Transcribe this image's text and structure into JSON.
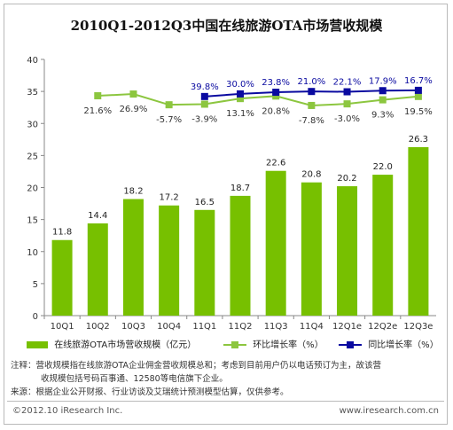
{
  "chart_data": {
    "type": "bar",
    "title": "2010Q1-2012Q3中国在线旅游OTA市场营收规模",
    "categories": [
      "10Q1",
      "10Q2",
      "10Q3",
      "10Q4",
      "11Q1",
      "11Q2",
      "11Q3",
      "11Q4",
      "12Q1e",
      "12Q2e",
      "12Q3e"
    ],
    "ylim": [
      0,
      40
    ],
    "yticks": [
      0,
      5,
      10,
      15,
      20,
      25,
      30,
      35,
      40
    ],
    "series": [
      {
        "name": "在线旅游OTA市场营收规模（亿元）",
        "type": "bar",
        "values": [
          11.8,
          14.4,
          18.2,
          17.2,
          16.5,
          18.7,
          22.6,
          20.8,
          20.2,
          22.0,
          26.3
        ],
        "labels": [
          "11.8",
          "14.4",
          "18.2",
          "17.2",
          "16.5",
          "18.7",
          "22.6",
          "20.8",
          "20.2",
          "22.0",
          "26.3"
        ],
        "color": "#77c000"
      },
      {
        "name": "环比增长率（%）",
        "type": "line",
        "values": [
          null,
          21.6,
          26.9,
          -5.7,
          -3.9,
          13.1,
          20.8,
          -7.8,
          -3.0,
          9.3,
          19.5
        ],
        "labels": [
          "",
          "21.6%",
          "26.9%",
          "-5.7%",
          "-3.9%",
          "13.1%",
          "20.8%",
          "-7.8%",
          "-3.0%",
          "9.3%",
          "19.5%"
        ],
        "color": "#8cc63f"
      },
      {
        "name": "同比增长率（%）",
        "type": "line",
        "values": [
          null,
          null,
          null,
          null,
          39.8,
          30.0,
          23.8,
          21.0,
          22.1,
          17.9,
          16.7
        ],
        "labels": [
          "",
          "",
          "",
          "",
          "39.8%",
          "30.0%",
          "23.8%",
          "21.0%",
          "22.1%",
          "17.9%",
          "16.7%"
        ],
        "color": "#0a0aa0"
      }
    ]
  },
  "notes": {
    "line1": "注释：营收规模指在线旅游OTA企业佣金营收规模总和；考虑到目前用户仍以电话预订为主，故该营",
    "line2": "收规模包括号码百事通、12580等电信旗下企业。",
    "line3": "来源：根据企业公开财报、行业访谈及艾瑞统计预测模型估算，仅供参考。"
  },
  "footer": {
    "copyright": "©2012.10 iResearch Inc.",
    "website": "www.iresearch.com.cn"
  }
}
